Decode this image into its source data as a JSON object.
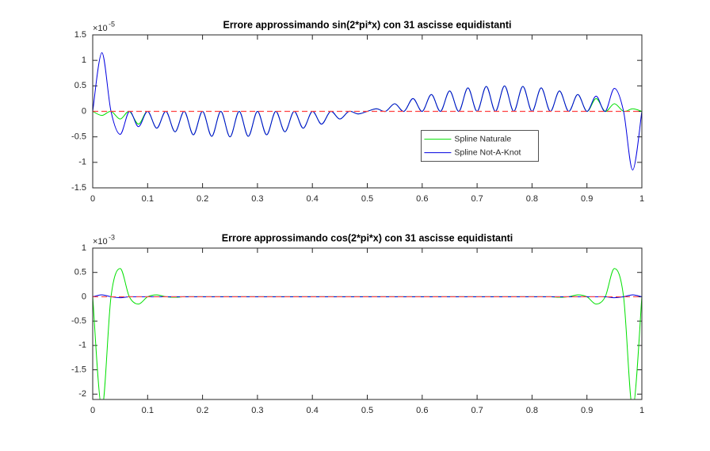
{
  "chart_data": [
    {
      "type": "line",
      "title": "Errore approssimando sin(2*pi*x) con 31 ascisse equidistanti",
      "y_multiplier": {
        "base": "×10",
        "exponent": "-5"
      },
      "x": [
        0,
        0.0167,
        0.0333,
        0.05,
        0.0667,
        0.0833,
        0.1,
        0.1167,
        0.1333,
        0.15,
        0.1667,
        0.1833,
        0.2,
        0.2167,
        0.2333,
        0.25,
        0.2667,
        0.2833,
        0.3,
        0.3167,
        0.3333,
        0.35,
        0.3667,
        0.3833,
        0.4,
        0.4167,
        0.4333,
        0.45,
        0.4667,
        0.4833,
        0.5,
        0.5167,
        0.5333,
        0.55,
        0.5667,
        0.5833,
        0.6,
        0.6167,
        0.6333,
        0.65,
        0.6667,
        0.6833,
        0.7,
        0.7167,
        0.7333,
        0.75,
        0.7667,
        0.7833,
        0.8,
        0.8167,
        0.8333,
        0.85,
        0.8667,
        0.8833,
        0.9,
        0.9167,
        0.9333,
        0.95,
        0.9667,
        0.9833,
        1
      ],
      "series": [
        {
          "name": "Spline Naturale",
          "color": "#00e000",
          "values": [
            0,
            -0.08,
            0,
            -0.15,
            0,
            -0.25,
            0,
            -0.33,
            0,
            -0.4,
            0,
            -0.46,
            0,
            -0.49,
            0,
            -0.5,
            0,
            -0.49,
            0,
            -0.46,
            0,
            -0.4,
            0,
            -0.33,
            0,
            -0.25,
            0,
            -0.15,
            0,
            -0.05,
            0,
            0.05,
            0,
            0.15,
            0,
            0.25,
            0,
            0.33,
            0,
            0.4,
            0,
            0.46,
            0,
            0.49,
            0,
            0.5,
            0,
            0.49,
            0,
            0.46,
            0,
            0.4,
            0,
            0.33,
            0,
            0.25,
            0,
            0.15,
            0,
            0.05,
            0
          ]
        },
        {
          "name": "Spline Not-A-Knot",
          "color": "#0000e0",
          "values": [
            0,
            1.15,
            0,
            -0.45,
            0,
            -0.3,
            0,
            -0.33,
            0,
            -0.4,
            0,
            -0.46,
            0,
            -0.49,
            0,
            -0.5,
            0,
            -0.49,
            0,
            -0.46,
            0,
            -0.4,
            0,
            -0.33,
            0,
            -0.25,
            0,
            -0.15,
            0,
            -0.05,
            0,
            0.05,
            0,
            0.15,
            0,
            0.25,
            0,
            0.33,
            0,
            0.4,
            0,
            0.46,
            0,
            0.49,
            0,
            0.5,
            0,
            0.49,
            0,
            0.46,
            0,
            0.4,
            0,
            0.33,
            0,
            0.3,
            0,
            0.45,
            0,
            -1.15,
            0
          ]
        }
      ],
      "reference_line": {
        "y": 0,
        "color": "#ff4040",
        "style": "dashed"
      },
      "xlim": [
        0,
        1
      ],
      "xticks": [
        0,
        0.1,
        0.2,
        0.3,
        0.4,
        0.5,
        0.6,
        0.7,
        0.8,
        0.9,
        1
      ],
      "ylim": [
        -1.5,
        1.5
      ],
      "yticks": [
        -1.5,
        -1,
        -0.5,
        0,
        0.5,
        1,
        1.5
      ],
      "legend": "center-right",
      "grid": false
    },
    {
      "type": "line",
      "title": "Errore approssimando cos(2*pi*x) con 31 ascisse equidistanti",
      "y_multiplier": {
        "base": "×10",
        "exponent": "-3"
      },
      "x": [
        0,
        0.0167,
        0.0333,
        0.05,
        0.0667,
        0.0833,
        0.1,
        0.1167,
        0.1333,
        0.15,
        0.1667,
        0.1833,
        0.2,
        0.2167,
        0.2333,
        0.25,
        0.2667,
        0.2833,
        0.3,
        0.3167,
        0.3333,
        0.35,
        0.3667,
        0.3833,
        0.4,
        0.4167,
        0.4333,
        0.45,
        0.4667,
        0.4833,
        0.5,
        0.5167,
        0.5333,
        0.55,
        0.5667,
        0.5833,
        0.6,
        0.6167,
        0.6333,
        0.65,
        0.6667,
        0.6833,
        0.7,
        0.7167,
        0.7333,
        0.75,
        0.7667,
        0.7833,
        0.8,
        0.8167,
        0.8333,
        0.85,
        0.8667,
        0.8833,
        0.9,
        0.9167,
        0.9333,
        0.95,
        0.9667,
        0.9833,
        1
      ],
      "series": [
        {
          "color": "#00e000",
          "values": [
            0,
            -2.3,
            0,
            0.58,
            0,
            -0.15,
            0,
            0.04,
            0,
            -0.01,
            0,
            0,
            0,
            0,
            0,
            0,
            0,
            0,
            0,
            0,
            0,
            0,
            0,
            0,
            0,
            0,
            0,
            0,
            0,
            0,
            0,
            0,
            0,
            0,
            0,
            0,
            0,
            0,
            0,
            0,
            0,
            0,
            0,
            0,
            0,
            0,
            0,
            0,
            0,
            0,
            0,
            -0.01,
            0,
            0.04,
            0,
            -0.15,
            0,
            0.58,
            0,
            -2.3,
            0
          ]
        },
        {
          "color": "#0000e0",
          "values": [
            0,
            0.04,
            0,
            -0.02,
            0,
            0,
            0,
            0,
            0,
            0,
            0,
            0,
            0,
            0,
            0,
            0,
            0,
            0,
            0,
            0,
            0,
            0,
            0,
            0,
            0,
            0,
            0,
            0,
            0,
            0,
            0,
            0,
            0,
            0,
            0,
            0,
            0,
            0,
            0,
            0,
            0,
            0,
            0,
            0,
            0,
            0,
            0,
            0,
            0,
            0,
            0,
            0,
            0,
            0,
            0,
            0,
            0,
            -0.02,
            0,
            0.04,
            0
          ]
        }
      ],
      "reference_line": {
        "y": 0,
        "color": "#ff4040",
        "style": "dashed"
      },
      "xlim": [
        0,
        1
      ],
      "xticks": [
        0,
        0.1,
        0.2,
        0.3,
        0.4,
        0.5,
        0.6,
        0.7,
        0.8,
        0.9,
        1
      ],
      "ylim": [
        -2.11,
        1
      ],
      "yticks": [
        -2,
        -1.5,
        -1,
        -0.5,
        0,
        0.5,
        1
      ],
      "grid": false
    }
  ]
}
